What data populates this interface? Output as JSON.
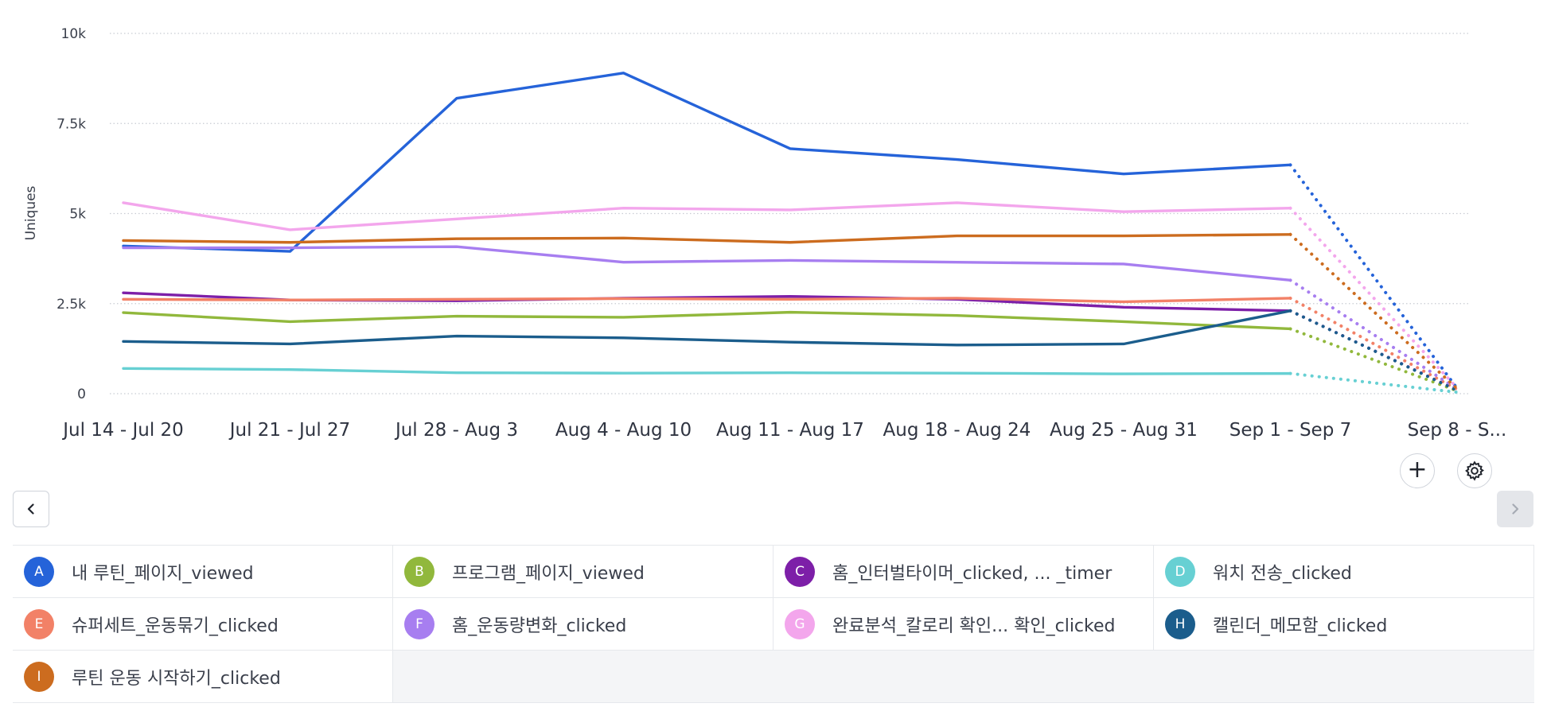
{
  "chart_data": {
    "type": "line",
    "ylabel": "Uniques",
    "ylim": [
      0,
      10000
    ],
    "yticks": [
      {
        "value": 0,
        "label": "0"
      },
      {
        "value": 2500,
        "label": "2.5k"
      },
      {
        "value": 5000,
        "label": "5k"
      },
      {
        "value": 7500,
        "label": "7.5k"
      },
      {
        "value": 10000,
        "label": "10k"
      }
    ],
    "categories": [
      "Jul 14 - Jul 20",
      "Jul 21 - Jul 27",
      "Jul 28 - Aug 3",
      "Aug 4 - Aug 10",
      "Aug 11 - Aug 17",
      "Aug 18 - Aug 24",
      "Aug 25 - Aug 31",
      "Sep 1 - Sep 7",
      "Sep 8 - S..."
    ],
    "incomplete_last_period": true,
    "grid": true,
    "series": [
      {
        "letter": "A",
        "name": "내 루틴_페이지_viewed",
        "color": "#2563d9",
        "values": [
          4100,
          3950,
          8200,
          8900,
          6800,
          6500,
          6100,
          6350,
          150
        ]
      },
      {
        "letter": "B",
        "name": "프로그램_페이지_viewed",
        "color": "#91b83c",
        "values": [
          2250,
          2000,
          2150,
          2120,
          2260,
          2170,
          2000,
          1800,
          80
        ]
      },
      {
        "letter": "C",
        "name": "홈_인터벌타이머_clicked, ...  _timer",
        "color": "#7d1fa8",
        "values": [
          2800,
          2600,
          2580,
          2650,
          2700,
          2620,
          2400,
          2300,
          100
        ]
      },
      {
        "letter": "D",
        "name": "워치 전송_clicked",
        "color": "#67d0d3",
        "values": [
          700,
          670,
          580,
          570,
          580,
          570,
          550,
          560,
          40
        ]
      },
      {
        "letter": "E",
        "name": "슈퍼세트_운동묶기_clicked",
        "color": "#f28167",
        "values": [
          2620,
          2600,
          2620,
          2640,
          2620,
          2650,
          2550,
          2650,
          120
        ]
      },
      {
        "letter": "F",
        "name": "홈_운동량변화_clicked",
        "color": "#a77ef0",
        "values": [
          4050,
          4050,
          4080,
          3650,
          3700,
          3650,
          3600,
          3150,
          130
        ]
      },
      {
        "letter": "G",
        "name": "완료분석_칼로리 확인...  확인_clicked",
        "color": "#f3a6ec",
        "values": [
          5300,
          4550,
          4850,
          5150,
          5100,
          5300,
          5050,
          5150,
          160
        ]
      },
      {
        "letter": "H",
        "name": "캘린더_메모함_clicked",
        "color": "#1b5d8c",
        "values": [
          1450,
          1380,
          1600,
          1550,
          1430,
          1350,
          1380,
          2300,
          90
        ]
      },
      {
        "letter": "I",
        "name": "루틴 운동 시작하기_clicked",
        "color": "#cc6c1f",
        "values": [
          4250,
          4200,
          4300,
          4320,
          4200,
          4380,
          4380,
          4420,
          140
        ]
      }
    ]
  },
  "controls": {
    "add_label": "+",
    "prev_label": "‹",
    "next_label": "›",
    "settings_icon": "gear-icon"
  }
}
